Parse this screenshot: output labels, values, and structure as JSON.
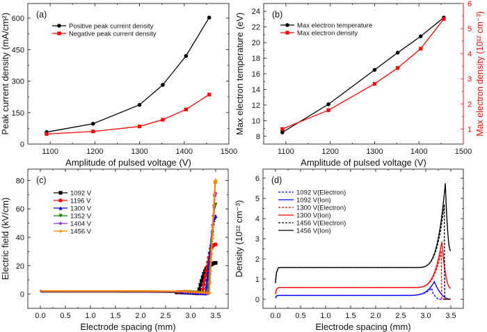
{
  "chart_data": [
    {
      "id": "a",
      "type": "line",
      "panel_label": "(a)",
      "xlabel": "Amplitude of pulsed voltage (V)",
      "ylabel": "Peak current density (mA/cm²)",
      "xlim": [
        1050,
        1500
      ],
      "ylim": [
        0,
        670
      ],
      "xticks": [
        1100,
        1200,
        1300,
        1400,
        1500
      ],
      "yticks": [
        0,
        150,
        300,
        450,
        600
      ],
      "legend": "top-left",
      "x": [
        1092,
        1196,
        1300,
        1352,
        1404,
        1456
      ],
      "series": [
        {
          "name": "Positive peak current density",
          "color": "#000000",
          "marker": "circle",
          "values": [
            57,
            97,
            187,
            282,
            420,
            603
          ]
        },
        {
          "name": "Negative peak current density",
          "color": "#ff0000",
          "marker": "square",
          "values": [
            48,
            60,
            84,
            116,
            165,
            236
          ]
        }
      ]
    },
    {
      "id": "b",
      "type": "line",
      "panel_label": "(b)",
      "xlabel": "Amplitude of pulsed voltage (V)",
      "ylabel": "Max electron temperature (eV)",
      "ylabel_right": "Max electron density (10¹² cm⁻³)",
      "xlim": [
        1050,
        1500
      ],
      "ylim": [
        7,
        25
      ],
      "ylim_right": [
        0.4,
        6
      ],
      "xticks": [
        1100,
        1200,
        1300,
        1400,
        1500
      ],
      "yticks": [
        8,
        10,
        12,
        14,
        16,
        18,
        20,
        22,
        24
      ],
      "yticks_right": [
        1,
        2,
        3,
        4,
        5,
        6
      ],
      "legend": "top-left",
      "x": [
        1092,
        1196,
        1300,
        1352,
        1404,
        1456
      ],
      "series": [
        {
          "name": "Max electron temperature",
          "color": "#000000",
          "marker": "circle",
          "axis": "left",
          "values": [
            8.5,
            12.1,
            16.5,
            18.7,
            20.8,
            23.2
          ]
        },
        {
          "name": "Max electron density",
          "color": "#ff0000",
          "marker": "square",
          "axis": "right",
          "values": [
            1.0,
            1.75,
            2.8,
            3.43,
            4.2,
            5.38
          ]
        }
      ]
    },
    {
      "id": "c",
      "type": "line",
      "panel_label": "(c)",
      "xlabel": "Electrode spacing (mm)",
      "ylabel": "Electric field (kV/cm)",
      "xlim": [
        -0.25,
        3.75
      ],
      "ylim": [
        -10,
        88
      ],
      "xticks": [
        0.0,
        0.5,
        1.0,
        1.5,
        2.0,
        2.5,
        3.0,
        3.5
      ],
      "yticks": [
        0,
        20,
        40,
        60,
        80
      ],
      "legend": "top-left",
      "series": [
        {
          "name": "1092 V",
          "color": "#000000",
          "marker": "square",
          "flat": 1.6,
          "dip_x": 3.15,
          "dip_y": 0.5,
          "knee_x": 3.38,
          "knee_y": 20,
          "end_x": 3.5,
          "end_y": 22
        },
        {
          "name": "1196 V",
          "color": "#ff0000",
          "marker": "circle",
          "flat": 1.7,
          "dip_x": 3.23,
          "dip_y": 0.5,
          "knee_x": 3.4,
          "knee_y": 32,
          "end_x": 3.5,
          "end_y": 35
        },
        {
          "name": "1300 V",
          "color": "#0000ff",
          "marker": "triangle",
          "flat": 1.8,
          "dip_x": 3.3,
          "dip_y": 0.4,
          "knee_x": 3.45,
          "knee_y": 50,
          "end_x": 3.5,
          "end_y": 55
        },
        {
          "name": "1352 V",
          "color": "#008000",
          "marker": "triangle-down",
          "flat": 1.9,
          "dip_x": 3.34,
          "dip_y": 0.5,
          "knee_x": 3.47,
          "knee_y": 60,
          "end_x": 3.5,
          "end_y": 63
        },
        {
          "name": "1404 V",
          "color": "#8a2be2",
          "marker": "diamond",
          "flat": 2.0,
          "dip_x": 3.36,
          "dip_y": 0.6,
          "knee_x": 3.48,
          "knee_y": 69,
          "end_x": 3.5,
          "end_y": 71
        },
        {
          "name": "1456 V",
          "color": "#ff8000",
          "marker": "cross",
          "flat": 2.2,
          "dip_x": 3.37,
          "dip_y": 0.8,
          "knee_x": 3.49,
          "knee_y": 78,
          "end_x": 3.5,
          "end_y": 80
        }
      ]
    },
    {
      "id": "d",
      "type": "line",
      "panel_label": "(d)",
      "xlabel": "Electrode spacing (mm)",
      "ylabel": "Density (10¹² cm⁻³)",
      "xlim": [
        -0.25,
        3.75
      ],
      "ylim": [
        -0.45,
        6.45
      ],
      "xticks": [
        0.0,
        0.5,
        1.0,
        1.5,
        2.0,
        2.5,
        3.0,
        3.5
      ],
      "yticks": [
        0,
        1,
        2,
        3,
        4,
        5,
        6
      ],
      "legend": "top-left",
      "series": [
        {
          "name": "1092 V(Electron)",
          "color": "#0000ff",
          "dash": true,
          "start": 0.05,
          "plateau": 0.19,
          "peak_x": 3.12,
          "peak_y": 0.55,
          "drop_end_x": 3.25,
          "end_y": 0.0
        },
        {
          "name": "1092 V(Ion)",
          "color": "#0000ff",
          "dash": false,
          "start": 0.1,
          "plateau": 0.19,
          "peak_x": 3.17,
          "peak_y": 0.87,
          "drop_end_x": 3.5,
          "end_y": 0.0
        },
        {
          "name": "1300 V(Electron)",
          "color": "#ff0000",
          "dash": true,
          "start": 0.25,
          "plateau": 0.58,
          "peak_x": 3.31,
          "peak_y": 2.4,
          "drop_end_x": 3.32,
          "end_y": 0.0
        },
        {
          "name": "1300 V(Ion)",
          "color": "#ff0000",
          "dash": false,
          "start": 0.3,
          "plateau": 0.58,
          "peak_x": 3.32,
          "peak_y": 2.85,
          "drop_end_x": 3.5,
          "end_y": 0.55
        },
        {
          "name": "1456 V(Electron)",
          "color": "#000000",
          "dash": true,
          "start": 0.8,
          "plateau": 1.57,
          "peak_x": 3.37,
          "peak_y": 4.7,
          "drop_end_x": 3.38,
          "end_y": 0.0
        },
        {
          "name": "1456 V(Ion)",
          "color": "#000000",
          "dash": false,
          "start": 0.85,
          "plateau": 1.57,
          "peak_x": 3.39,
          "peak_y": 5.75,
          "drop_end_x": 3.5,
          "end_y": 2.4
        }
      ]
    }
  ]
}
